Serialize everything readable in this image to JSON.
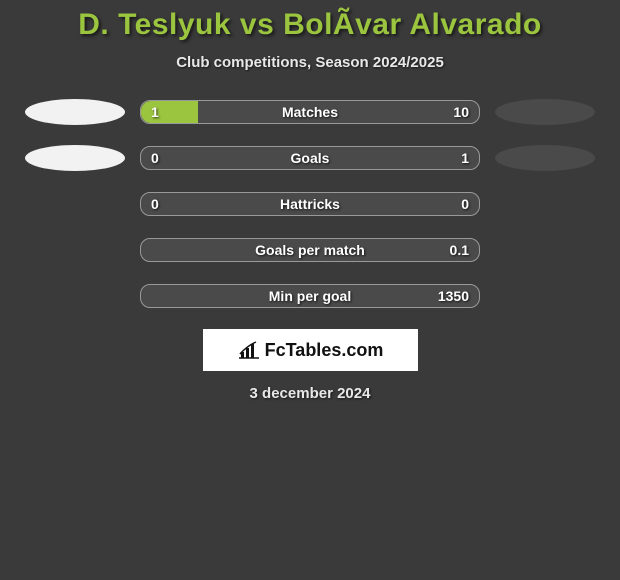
{
  "title": "D. Teslyuk vs BolÃvar Alvarado",
  "subtitle": "Club competitions, Season 2024/2025",
  "date": "3 december 2024",
  "brand": "FcTables.com",
  "colors": {
    "accent": "#9bc43f",
    "bar_fill": "#9bc43f",
    "bar_bg": "#4a4a4a",
    "background": "#3a3a3a",
    "avatar_left": "#f2f2f2",
    "avatar_right": "#4a4a4a"
  },
  "stats": [
    {
      "label": "Matches",
      "left_val": "1",
      "right_val": "10",
      "left_pct": 17,
      "right_pct": 0,
      "show_avatars": true,
      "avatar_left_bg": "#f2f2f2",
      "avatar_right_bg": "#4a4a4a"
    },
    {
      "label": "Goals",
      "left_val": "0",
      "right_val": "1",
      "left_pct": 0,
      "right_pct": 0,
      "show_avatars": true,
      "avatar_left_bg": "#f2f2f2",
      "avatar_right_bg": "#4a4a4a"
    },
    {
      "label": "Hattricks",
      "left_val": "0",
      "right_val": "0",
      "left_pct": 0,
      "right_pct": 0,
      "show_avatars": false
    },
    {
      "label": "Goals per match",
      "left_val": "",
      "right_val": "0.1",
      "left_pct": 0,
      "right_pct": 0,
      "show_avatars": false
    },
    {
      "label": "Min per goal",
      "left_val": "",
      "right_val": "1350",
      "left_pct": 0,
      "right_pct": 0,
      "show_avatars": false
    }
  ]
}
